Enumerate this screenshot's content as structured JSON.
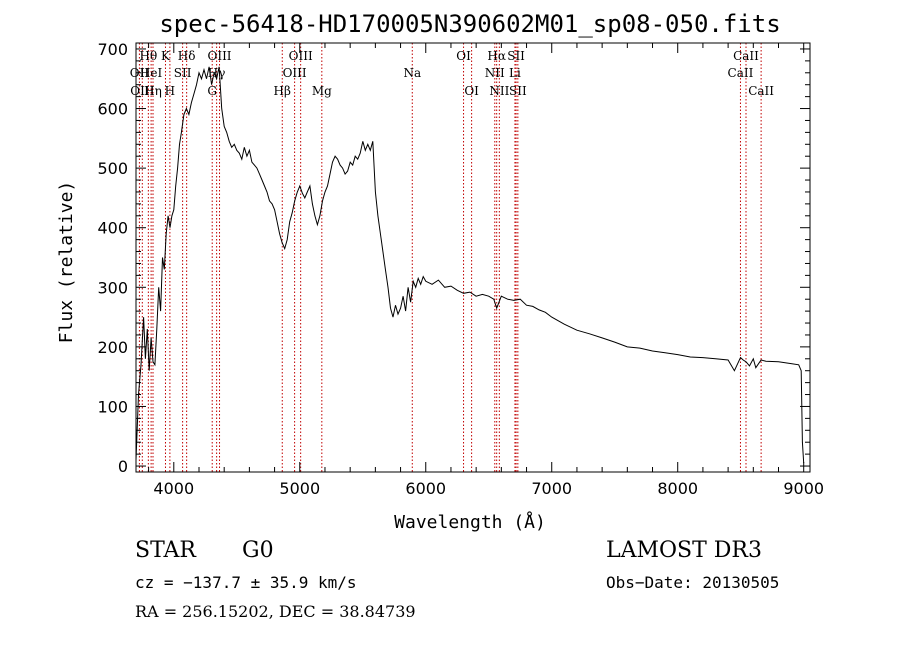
{
  "chart_data": {
    "type": "line",
    "title": "spec-56418-HD170005N390602M01_sp08-050.fits",
    "xlabel": "Wavelength (Å)",
    "ylabel": "Flux (relative)",
    "xlim": [
      3700,
      9050
    ],
    "ylim": [
      -10,
      710
    ],
    "xticks": [
      4000,
      5000,
      6000,
      7000,
      8000,
      9000
    ],
    "yticks": [
      0,
      100,
      200,
      300,
      400,
      500,
      600,
      700
    ],
    "series": [
      {
        "name": "spectrum",
        "x": [
          3700,
          3720,
          3740,
          3760,
          3775,
          3790,
          3805,
          3820,
          3835,
          3850,
          3865,
          3880,
          3895,
          3910,
          3925,
          3940,
          3955,
          3970,
          3985,
          4000,
          4015,
          4030,
          4045,
          4060,
          4080,
          4100,
          4120,
          4140,
          4160,
          4180,
          4200,
          4220,
          4240,
          4260,
          4280,
          4300,
          4320,
          4340,
          4360,
          4380,
          4400,
          4420,
          4440,
          4460,
          4480,
          4500,
          4520,
          4540,
          4560,
          4580,
          4600,
          4620,
          4640,
          4660,
          4680,
          4700,
          4720,
          4740,
          4760,
          4780,
          4800,
          4820,
          4840,
          4860,
          4880,
          4900,
          4920,
          4940,
          4960,
          4980,
          5000,
          5020,
          5040,
          5060,
          5080,
          5100,
          5120,
          5140,
          5160,
          5180,
          5200,
          5220,
          5240,
          5260,
          5280,
          5300,
          5320,
          5340,
          5360,
          5380,
          5400,
          5420,
          5440,
          5460,
          5480,
          5500,
          5520,
          5540,
          5560,
          5580,
          5600,
          5620,
          5640,
          5660,
          5680,
          5700,
          5720,
          5740,
          5760,
          5780,
          5800,
          5820,
          5840,
          5860,
          5880,
          5900,
          5920,
          5940,
          5960,
          5980,
          6000,
          6050,
          6100,
          6150,
          6200,
          6250,
          6300,
          6350,
          6400,
          6450,
          6500,
          6540,
          6563,
          6600,
          6650,
          6700,
          6750,
          6800,
          6850,
          6900,
          6950,
          7000,
          7100,
          7200,
          7300,
          7400,
          7500,
          7600,
          7700,
          7800,
          7900,
          8000,
          8100,
          8200,
          8300,
          8400,
          8450,
          8498,
          8520,
          8542,
          8570,
          8600,
          8620,
          8662,
          8700,
          8800,
          8900,
          8960,
          8980,
          8990,
          9000
        ],
        "values": [
          10,
          120,
          170,
          250,
          180,
          230,
          160,
          215,
          175,
          170,
          230,
          300,
          260,
          350,
          330,
          390,
          420,
          400,
          420,
          430,
          470,
          500,
          540,
          560,
          590,
          600,
          590,
          610,
          625,
          640,
          660,
          650,
          665,
          650,
          670,
          640,
          660,
          650,
          670,
          600,
          570,
          560,
          545,
          535,
          540,
          530,
          525,
          515,
          535,
          520,
          530,
          510,
          505,
          500,
          490,
          480,
          470,
          460,
          445,
          440,
          430,
          410,
          390,
          375,
          365,
          380,
          410,
          425,
          445,
          460,
          470,
          458,
          450,
          460,
          470,
          440,
          420,
          405,
          420,
          445,
          460,
          470,
          490,
          510,
          520,
          515,
          505,
          500,
          490,
          495,
          510,
          505,
          520,
          515,
          525,
          545,
          530,
          540,
          530,
          545,
          460,
          420,
          390,
          360,
          330,
          300,
          265,
          250,
          270,
          255,
          265,
          285,
          260,
          300,
          275,
          310,
          300,
          315,
          305,
          318,
          310,
          305,
          312,
          300,
          302,
          295,
          290,
          292,
          285,
          288,
          285,
          280,
          265,
          285,
          280,
          278,
          280,
          270,
          268,
          262,
          258,
          250,
          238,
          228,
          222,
          215,
          208,
          200,
          198,
          193,
          190,
          187,
          183,
          182,
          180,
          178,
          160,
          182,
          178,
          175,
          168,
          180,
          165,
          178,
          176,
          175,
          172,
          170,
          160,
          40,
          5
        ]
      }
    ],
    "line_markers": [
      {
        "label": "Hθ",
        "wavelength": 3798,
        "row": 1
      },
      {
        "label": "OII",
        "wavelength": 3727,
        "row": 2
      },
      {
        "label": "OIII",
        "wavelength": 3750,
        "row": 3
      },
      {
        "label": "HeI",
        "wavelength": 3820,
        "row": 2
      },
      {
        "label": "Hη",
        "wavelength": 3835,
        "row": 3
      },
      {
        "label": "K",
        "wavelength": 3934,
        "row": 1
      },
      {
        "label": "SII",
        "wavelength": 4070,
        "row": 2
      },
      {
        "label": "H",
        "wavelength": 3969,
        "row": 3
      },
      {
        "label": "Hδ",
        "wavelength": 4102,
        "row": 1
      },
      {
        "label": "OIII",
        "wavelength": 4363,
        "row": 1
      },
      {
        "label": "Hγ",
        "wavelength": 4340,
        "row": 2
      },
      {
        "label": "G",
        "wavelength": 4305,
        "row": 3
      },
      {
        "label": "OIII",
        "wavelength": 5007,
        "row": 1
      },
      {
        "label": "OIII",
        "wavelength": 4959,
        "row": 2
      },
      {
        "label": "Hβ",
        "wavelength": 4861,
        "row": 3
      },
      {
        "label": "Mg",
        "wavelength": 5175,
        "row": 3
      },
      {
        "label": "Na",
        "wavelength": 5893,
        "row": 2
      },
      {
        "label": "OI",
        "wavelength": 6300,
        "row": 1
      },
      {
        "label": "OI",
        "wavelength": 6364,
        "row": 3
      },
      {
        "label": "Hα",
        "wavelength": 6563,
        "row": 1
      },
      {
        "label": "NII",
        "wavelength": 6548,
        "row": 2
      },
      {
        "label": "NII",
        "wavelength": 6584,
        "row": 3
      },
      {
        "label": "SII",
        "wavelength": 6717,
        "row": 1
      },
      {
        "label": "Li",
        "wavelength": 6708,
        "row": 2
      },
      {
        "label": "SII",
        "wavelength": 6731,
        "row": 3
      },
      {
        "label": "CaII",
        "wavelength": 8542,
        "row": 1
      },
      {
        "label": "CaII",
        "wavelength": 8498,
        "row": 2
      },
      {
        "label": "CaII",
        "wavelength": 8662,
        "row": 3
      }
    ]
  },
  "info": {
    "object_class": "STAR",
    "subclass": "G0",
    "survey": "LAMOST DR3",
    "cz": "cz = −137.7 ± 35.9 km/s",
    "obs_date": "Obs−Date: 20130505",
    "radec": "RA = 256.15202, DEC =  38.84739"
  }
}
